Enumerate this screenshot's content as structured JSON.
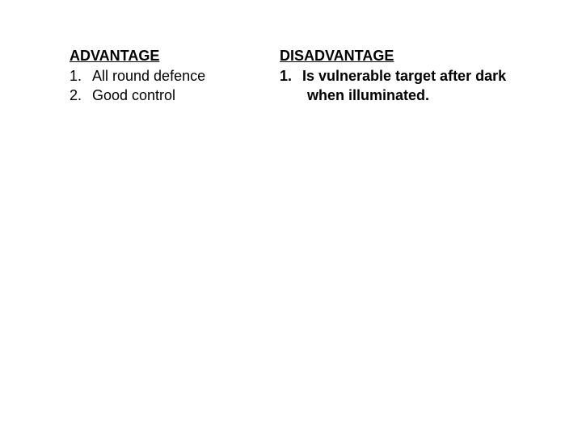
{
  "left": {
    "heading": "ADVANTAGE",
    "items": [
      {
        "num": "1.",
        "text": "All round defence"
      },
      {
        "num": "2.",
        "text": "Good control"
      }
    ]
  },
  "right": {
    "heading": "DISADVANTAGE",
    "items": [
      {
        "num": "1.",
        "text": "Is vulnerable target after dark"
      }
    ],
    "continuation": "when illuminated."
  },
  "colors": {
    "background": "#ffffff",
    "text": "#000000"
  },
  "typography": {
    "font_family": "Arial",
    "font_size_pt": 14,
    "heading_weight": "bold",
    "heading_decoration": "underline"
  }
}
